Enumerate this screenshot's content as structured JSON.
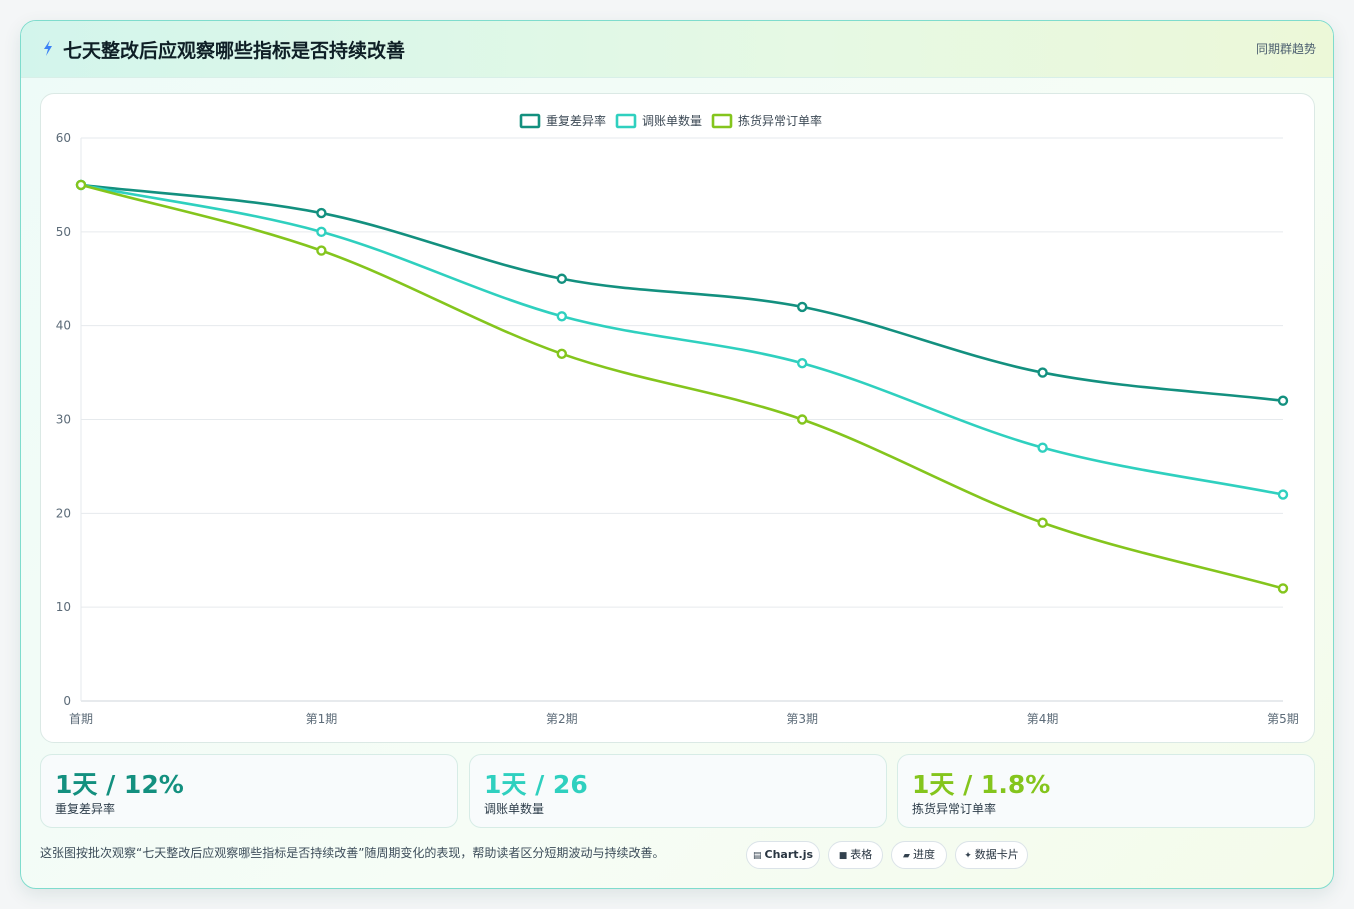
{
  "header": {
    "title": "七天整改后应观察哪些指标是否持续改善",
    "tag": "同期群趋势",
    "icon": "lightning-icon"
  },
  "chart_data": {
    "type": "line",
    "categories": [
      "首期",
      "第1期",
      "第2期",
      "第3期",
      "第4期",
      "第5期"
    ],
    "series": [
      {
        "name": "重复差异率",
        "color": "#13907f",
        "values": [
          55,
          52,
          45,
          42,
          35,
          32
        ]
      },
      {
        "name": "调账单数量",
        "color": "#2fd0bf",
        "values": [
          55,
          50,
          41,
          36,
          27,
          22
        ]
      },
      {
        "name": "拣货异常订单率",
        "color": "#84c51d",
        "values": [
          55,
          48,
          37,
          30,
          19,
          12
        ]
      }
    ],
    "ylim": [
      0,
      60
    ],
    "yticks": [
      "0",
      "10",
      "20",
      "30",
      "40",
      "50",
      "60"
    ],
    "grid": true,
    "legend": "top-center"
  },
  "stats": [
    {
      "value": "1天 / 12%",
      "label": "重复差异率",
      "color": "#13907f"
    },
    {
      "value": "1天 / 26",
      "label": "调账单数量",
      "color": "#2fd0bf"
    },
    {
      "value": "1天 / 1.8%",
      "label": "拣货异常订单率",
      "color": "#84c51d"
    }
  ],
  "footnote": "这张图按批次观察“七天整改后应观察哪些指标是否持续改善”随周期变化的表现，帮助读者区分短期波动与持续改善。",
  "chips": [
    {
      "icon": "chart-icon",
      "glyph": "▤",
      "label": "Chart.js"
    },
    {
      "icon": "table-icon",
      "glyph": "■",
      "label": "表格"
    },
    {
      "icon": "progress-icon",
      "glyph": "▰",
      "label": "进度"
    },
    {
      "icon": "sparkle-icon",
      "glyph": "✦",
      "label": "数据卡片"
    }
  ]
}
